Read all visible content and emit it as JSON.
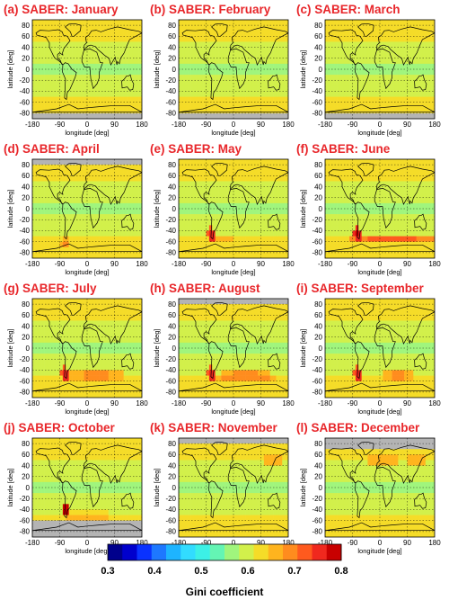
{
  "chart_data": {
    "type": "heatmap",
    "xlabel": "longitude [deg]",
    "ylabel": "latitude [deg]",
    "xlim": [
      -180,
      180
    ],
    "ylim": [
      -90,
      90
    ],
    "x_ticks": [
      "-180",
      "-90",
      "0",
      "90",
      "180"
    ],
    "y_ticks": [
      "80",
      "60",
      "40",
      "20",
      "0",
      "-20",
      "-40",
      "-60",
      "-80"
    ],
    "grid": true,
    "no_data_color": "#b4b4b4",
    "panels": [
      {
        "title": "(a) SABER: January"
      },
      {
        "title": "(b) SABER: February"
      },
      {
        "title": "(c) SABER: March"
      },
      {
        "title": "(d) SABER: April"
      },
      {
        "title": "(e) SABER: May"
      },
      {
        "title": "(f) SABER: June"
      },
      {
        "title": "(g) SABER: July"
      },
      {
        "title": "(h) SABER: August"
      },
      {
        "title": "(i) SABER: September"
      },
      {
        "title": "(j) SABER: October"
      },
      {
        "title": "(k) SABER: November"
      },
      {
        "title": "(l) SABER: December"
      }
    ],
    "colorbar": {
      "label": "Gini coefficient",
      "range": [
        0.3,
        0.8
      ],
      "ticks": [
        "0.3",
        "0.4",
        "0.5",
        "0.6",
        "0.7",
        "0.8"
      ],
      "colors": [
        "#00008c",
        "#0000cd",
        "#0a32ff",
        "#1e78ff",
        "#1eb4ff",
        "#32dcff",
        "#3cf0e6",
        "#64f5b4",
        "#a0f57d",
        "#d2f04b",
        "#f5dc28",
        "#ffb41e",
        "#ff8c1e",
        "#ff5a1e",
        "#f0281e",
        "#c80000"
      ]
    }
  }
}
